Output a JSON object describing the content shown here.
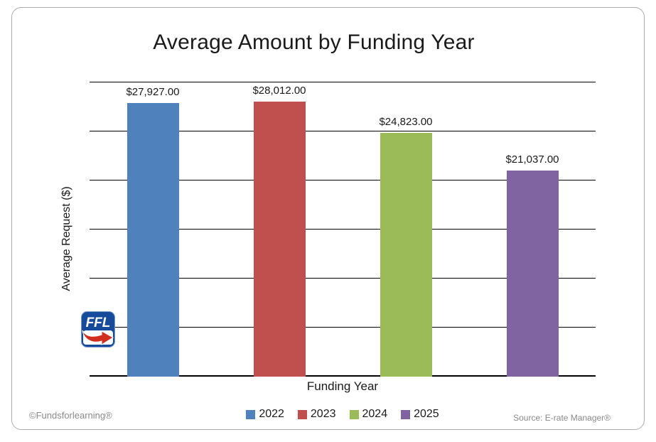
{
  "chart_title": "Average Amount by Funding Year",
  "axes": {
    "x_title": "Funding Year",
    "y_title": "Average Request ($)"
  },
  "footer": {
    "copyright": "©Fundsforlearning®",
    "source": "Source: E-rate Manager®"
  },
  "logo": {
    "text": "FFL"
  },
  "colors": {
    "frame_border": "#ACACAC",
    "gridline": "#000000",
    "text": "#1A1A1A",
    "muted_text": "#8A8A8A"
  },
  "chart_data": {
    "type": "bar",
    "title": "Average Amount by Funding Year",
    "xlabel": "Funding Year",
    "ylabel": "Average Request ($)",
    "categories": [
      "2022",
      "2023",
      "2024",
      "2025"
    ],
    "values": [
      27927,
      28012,
      24823,
      21037
    ],
    "value_labels": [
      "$27,927.00",
      "$28,012.00",
      "$24,823.00",
      "$21,037.00"
    ],
    "series_colors": [
      "#4F81BD",
      "#C0504D",
      "#9BBB59",
      "#8064A2"
    ],
    "ylim": [
      0,
      30000
    ],
    "ytick_interval": 5000,
    "grid": true,
    "y_tick_labels_shown": false,
    "legend_position": "bottom",
    "legend_entries": [
      "2022",
      "2023",
      "2024",
      "2025"
    ]
  }
}
